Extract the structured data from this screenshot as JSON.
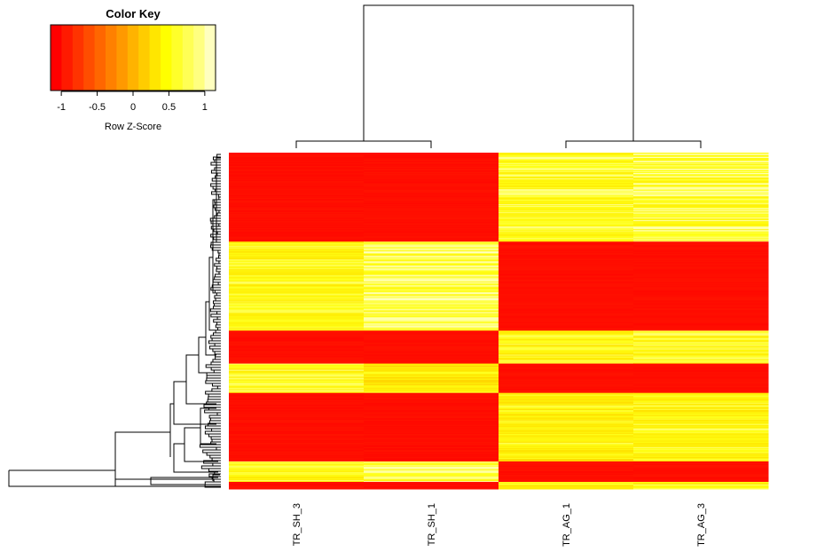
{
  "chart_data": {
    "type": "heatmap",
    "color_key": {
      "title": "Color Key",
      "xlabel": "Row Z-Score",
      "ticks": [
        -1,
        -0.5,
        0,
        0.5,
        1
      ],
      "tick_labels": [
        "-1",
        "-0.5",
        "0",
        "0.5",
        "1"
      ],
      "range": [
        -1.15,
        1.15
      ],
      "colors": [
        "#ff0000",
        "#ff1a00",
        "#ff3300",
        "#ff4d00",
        "#ff6600",
        "#ff8000",
        "#ff9900",
        "#ffb300",
        "#ffcc00",
        "#ffe600",
        "#ffff00",
        "#ffff2a",
        "#ffff55",
        "#ffff80",
        "#ffffbf"
      ]
    },
    "columns": [
      "TR_SH_3",
      "TR_SH_1",
      "TR_AG_1",
      "TR_AG_3"
    ],
    "row_blocks": [
      {
        "rows": 100,
        "values": [
          -1.0,
          -1.0,
          0.8,
          0.85
        ]
      },
      {
        "rows": 100,
        "values": [
          0.7,
          0.9,
          -1.0,
          -1.0
        ]
      },
      {
        "rows": 37,
        "values": [
          -1.0,
          -1.0,
          0.7,
          0.75
        ]
      },
      {
        "rows": 33,
        "values": [
          0.75,
          0.6,
          -1.0,
          -1.0
        ]
      },
      {
        "rows": 77,
        "values": [
          -1.0,
          -1.0,
          0.65,
          0.7
        ]
      },
      {
        "rows": 23,
        "values": [
          0.7,
          0.9,
          -1.0,
          -1.0
        ]
      },
      {
        "rows": 8,
        "values": [
          -1.0,
          -1.0,
          0.65,
          0.75
        ]
      }
    ],
    "col_dendrogram": [
      {
        "left": 0,
        "right": 1,
        "height": 0.05
      },
      {
        "left": 2,
        "right": 3,
        "height": 0.05
      },
      {
        "left": "m01",
        "right": "m23",
        "height": 1.0
      }
    ]
  }
}
